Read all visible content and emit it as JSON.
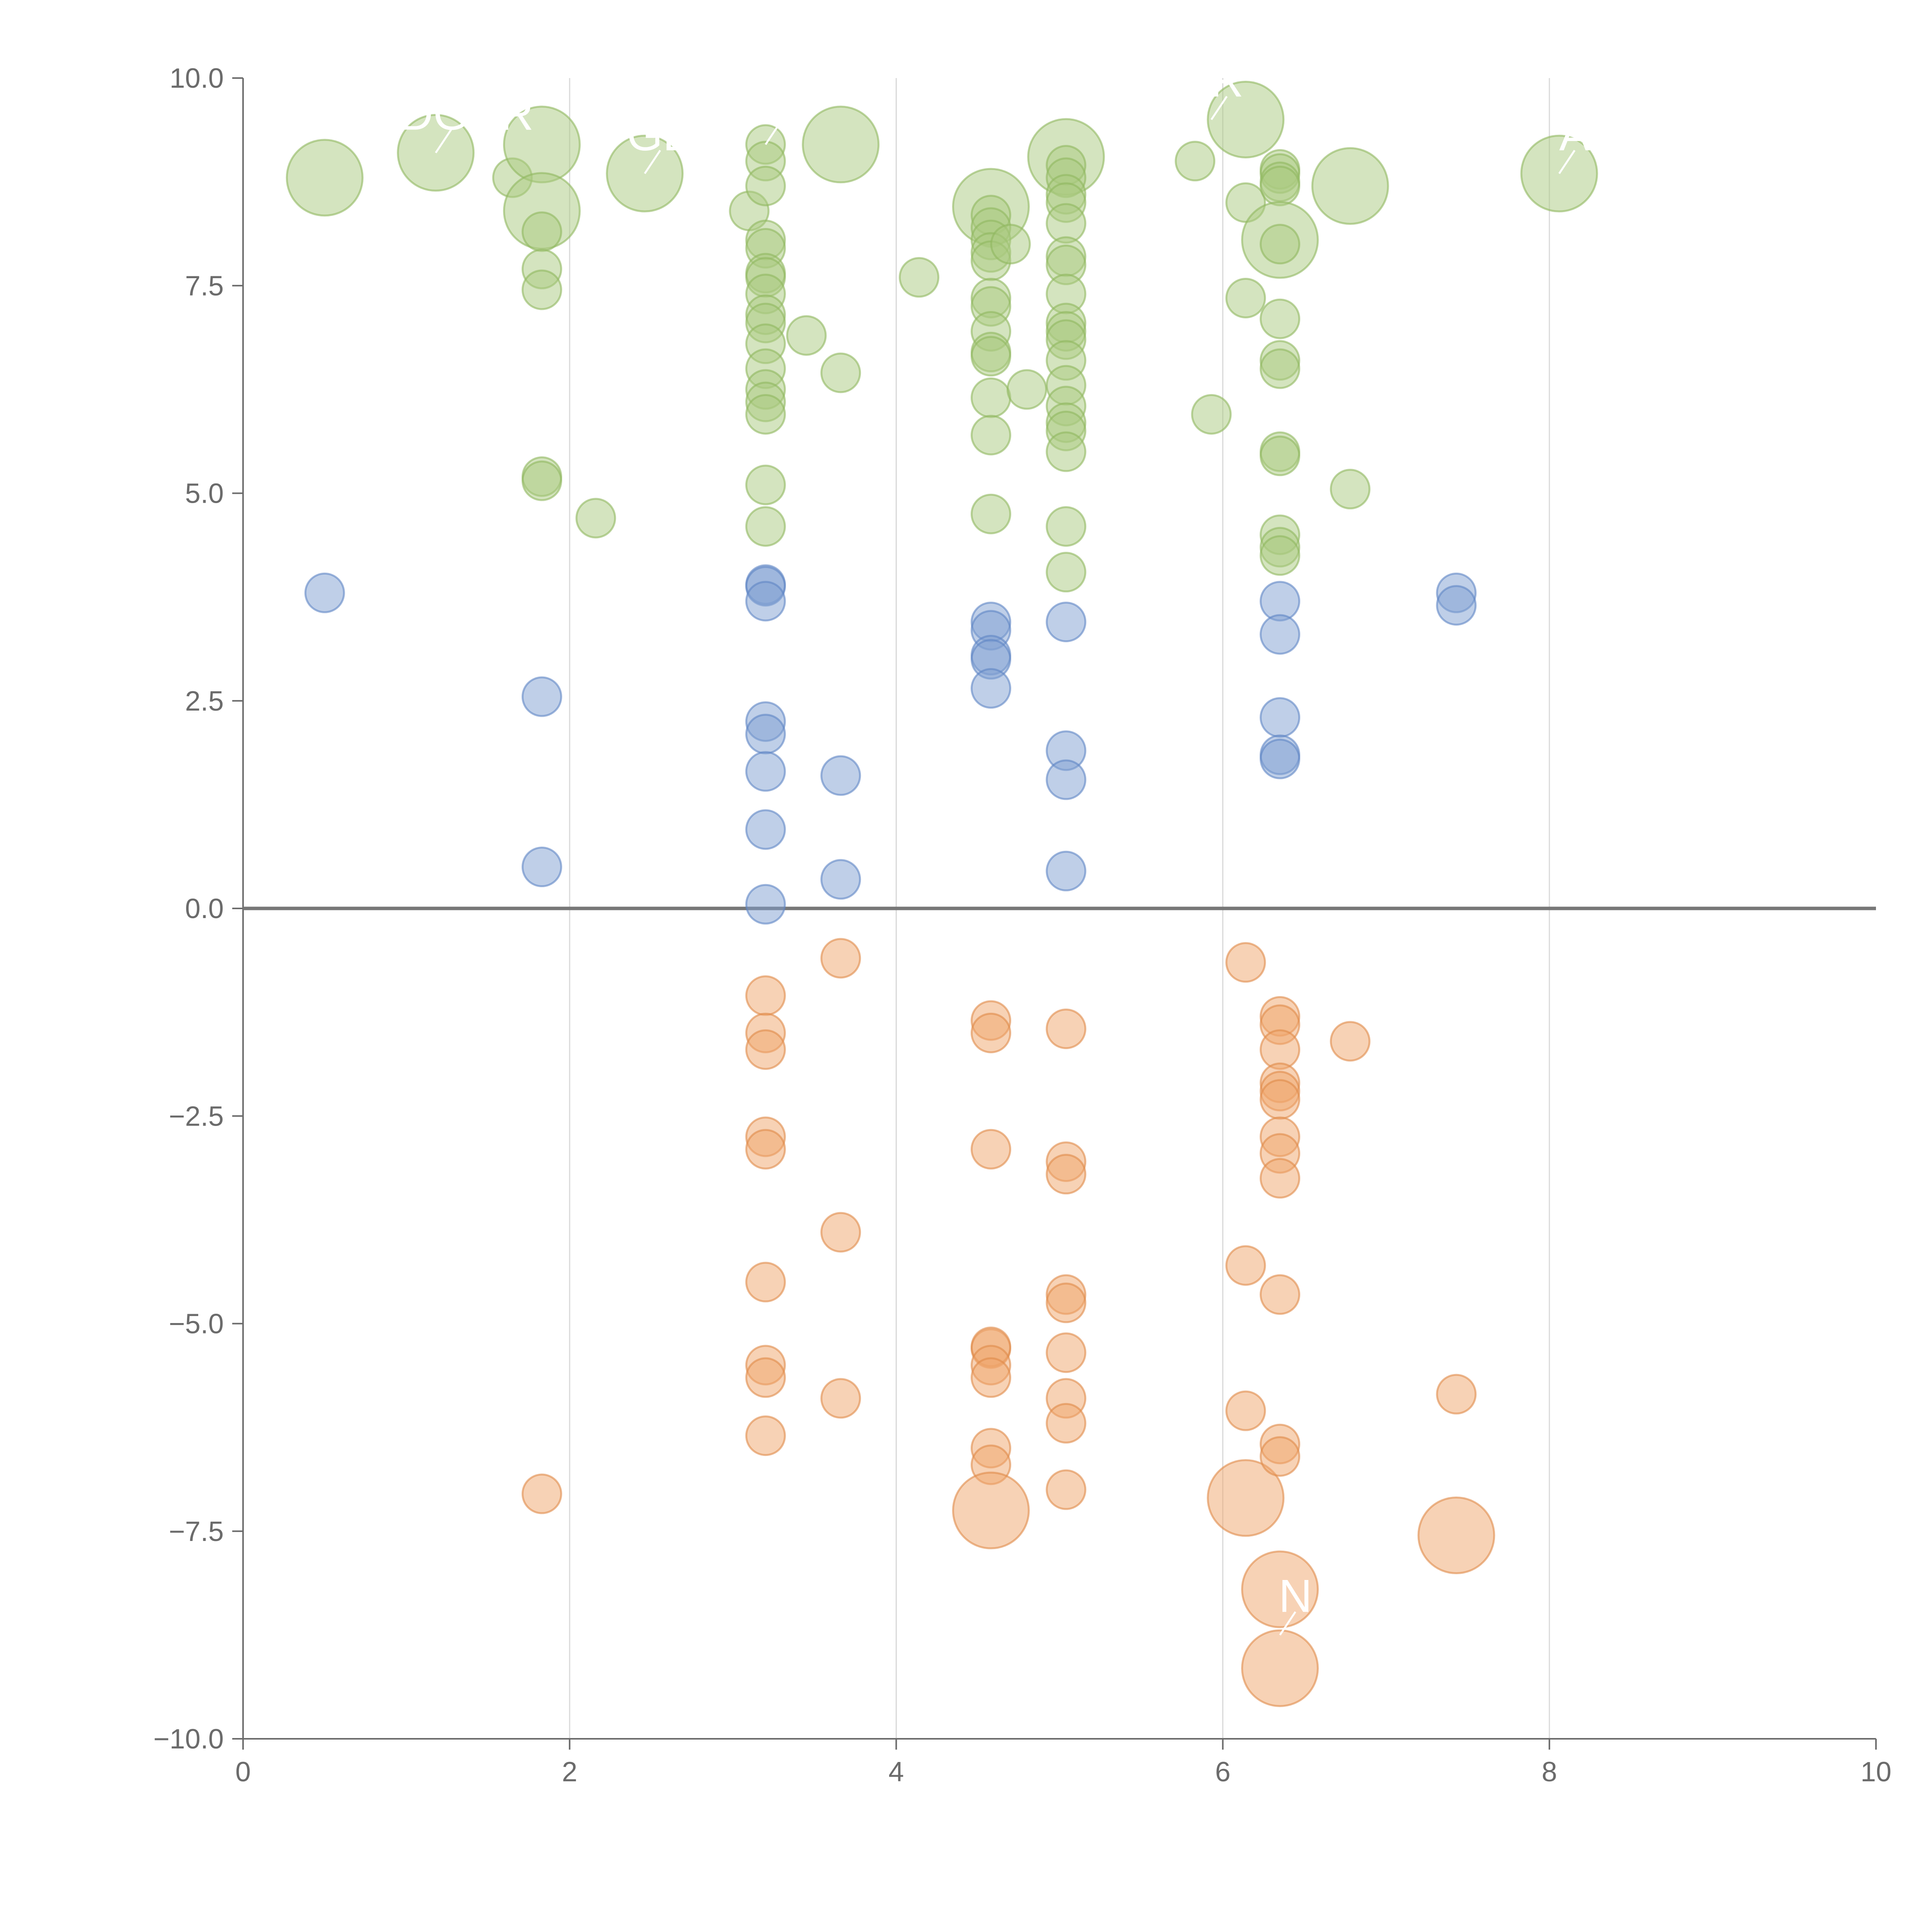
{
  "chart_data": {
    "type": "scatter",
    "variant": "bubble",
    "title": "",
    "xlabel": "",
    "ylabel": "",
    "xlim": [
      0,
      10
    ],
    "ylim": [
      -10,
      10
    ],
    "x_ticks": [
      "0",
      "2",
      "4",
      "6",
      "8",
      "10"
    ],
    "y_ticks": [
      "10.0",
      "7.5",
      "5.0",
      "2.5",
      "0.0",
      "−2.5",
      "−5.0",
      "−7.5",
      "−10.0"
    ],
    "grid": "vertical",
    "zero_line": true,
    "legend": "none",
    "colors": {
      "high": {
        "fill": "#a9c97f",
        "stroke": "#8fb85f"
      },
      "mid": {
        "fill": "#7f9fd1",
        "stroke": "#5f86c4"
      },
      "low": {
        "fill": "#f0a56b",
        "stroke": "#e08a4a"
      },
      "axis": "#6b6b6b",
      "grid": "#d9d9d9"
    },
    "series": [
      {
        "key": "high",
        "points": [
          [
            0.5,
            8.8,
            3
          ],
          [
            1.18,
            9.1,
            3
          ],
          [
            1.65,
            8.8,
            1
          ],
          [
            1.83,
            9.2,
            3
          ],
          [
            1.83,
            8.4,
            3
          ],
          [
            1.83,
            8.15,
            1
          ],
          [
            1.83,
            7.7,
            1
          ],
          [
            1.83,
            7.45,
            1
          ],
          [
            1.83,
            5.2,
            1
          ],
          [
            1.83,
            5.15,
            1
          ],
          [
            2.16,
            4.7,
            1
          ],
          [
            2.46,
            8.85,
            3
          ],
          [
            3.1,
            8.4,
            1
          ],
          [
            3.2,
            9.2,
            1
          ],
          [
            3.2,
            9.0,
            1
          ],
          [
            3.2,
            8.7,
            1
          ],
          [
            3.2,
            8.05,
            1
          ],
          [
            3.2,
            7.95,
            1
          ],
          [
            3.2,
            7.65,
            1
          ],
          [
            3.2,
            7.6,
            1
          ],
          [
            3.2,
            7.4,
            1
          ],
          [
            3.2,
            7.15,
            1
          ],
          [
            3.2,
            7.05,
            1
          ],
          [
            3.2,
            6.8,
            1
          ],
          [
            3.2,
            6.5,
            1
          ],
          [
            3.2,
            6.25,
            1
          ],
          [
            3.2,
            6.1,
            1
          ],
          [
            3.2,
            5.95,
            1
          ],
          [
            3.2,
            5.1,
            1
          ],
          [
            3.2,
            4.6,
            1
          ],
          [
            3.45,
            6.9,
            1
          ],
          [
            3.66,
            9.2,
            3
          ],
          [
            3.66,
            6.45,
            1
          ],
          [
            4.14,
            7.6,
            1
          ],
          [
            4.58,
            8.45,
            3
          ],
          [
            4.58,
            8.35,
            1
          ],
          [
            4.58,
            8.2,
            1
          ],
          [
            4.58,
            8.05,
            1
          ],
          [
            4.58,
            7.9,
            1
          ],
          [
            4.58,
            7.8,
            1
          ],
          [
            4.58,
            7.35,
            1
          ],
          [
            4.58,
            7.25,
            1
          ],
          [
            4.58,
            6.95,
            1
          ],
          [
            4.58,
            6.7,
            1
          ],
          [
            4.58,
            6.65,
            1
          ],
          [
            4.58,
            6.15,
            1
          ],
          [
            4.58,
            5.7,
            1
          ],
          [
            4.58,
            4.75,
            1
          ],
          [
            4.7,
            8.0,
            1
          ],
          [
            4.8,
            6.25,
            1
          ],
          [
            5.04,
            9.05,
            3
          ],
          [
            5.04,
            8.95,
            1
          ],
          [
            5.04,
            8.8,
            1
          ],
          [
            5.04,
            8.6,
            1
          ],
          [
            5.04,
            8.5,
            1
          ],
          [
            5.04,
            8.25,
            1
          ],
          [
            5.04,
            7.85,
            1
          ],
          [
            5.04,
            7.75,
            1
          ],
          [
            5.04,
            7.4,
            1
          ],
          [
            5.04,
            7.05,
            1
          ],
          [
            5.04,
            6.95,
            1
          ],
          [
            5.04,
            6.85,
            1
          ],
          [
            5.04,
            6.6,
            1
          ],
          [
            5.04,
            6.3,
            1
          ],
          [
            5.04,
            6.05,
            1
          ],
          [
            5.04,
            5.85,
            1
          ],
          [
            5.04,
            5.75,
            1
          ],
          [
            5.04,
            5.5,
            1
          ],
          [
            5.04,
            4.6,
            1
          ],
          [
            5.04,
            4.05,
            1
          ],
          [
            5.83,
            9.0,
            1
          ],
          [
            5.93,
            5.95,
            1
          ],
          [
            6.14,
            9.5,
            3
          ],
          [
            6.14,
            8.5,
            1
          ],
          [
            6.14,
            7.35,
            1
          ],
          [
            6.35,
            8.9,
            1
          ],
          [
            6.35,
            8.85,
            1
          ],
          [
            6.35,
            8.75,
            1
          ],
          [
            6.35,
            8.7,
            1
          ],
          [
            6.35,
            8.05,
            3
          ],
          [
            6.35,
            8.0,
            1
          ],
          [
            6.35,
            7.1,
            1
          ],
          [
            6.35,
            6.6,
            1
          ],
          [
            6.35,
            6.5,
            1
          ],
          [
            6.35,
            5.5,
            1
          ],
          [
            6.35,
            5.45,
            1
          ],
          [
            6.35,
            4.5,
            1
          ],
          [
            6.35,
            4.35,
            1
          ],
          [
            6.35,
            4.25,
            1
          ],
          [
            6.78,
            8.7,
            3
          ],
          [
            6.78,
            5.05,
            1
          ],
          [
            8.06,
            8.85,
            3
          ]
        ]
      },
      {
        "key": "mid",
        "points": [
          [
            0.5,
            3.8,
            1
          ],
          [
            1.83,
            2.55,
            1
          ],
          [
            1.83,
            0.5,
            1
          ],
          [
            3.2,
            3.9,
            1
          ],
          [
            3.2,
            3.88,
            1
          ],
          [
            3.2,
            3.7,
            1
          ],
          [
            3.2,
            2.25,
            1
          ],
          [
            3.2,
            2.1,
            1
          ],
          [
            3.2,
            1.65,
            1
          ],
          [
            3.2,
            0.95,
            1
          ],
          [
            3.2,
            0.05,
            1
          ],
          [
            3.66,
            1.6,
            1
          ],
          [
            3.66,
            0.35,
            1
          ],
          [
            4.58,
            3.45,
            1
          ],
          [
            4.58,
            3.35,
            1
          ],
          [
            4.58,
            3.05,
            1
          ],
          [
            4.58,
            3.0,
            1
          ],
          [
            4.58,
            2.65,
            1
          ],
          [
            5.04,
            3.45,
            1
          ],
          [
            5.04,
            1.9,
            1
          ],
          [
            5.04,
            1.55,
            1
          ],
          [
            5.04,
            0.45,
            1
          ],
          [
            6.35,
            3.7,
            1
          ],
          [
            6.35,
            3.3,
            1
          ],
          [
            6.35,
            2.3,
            1
          ],
          [
            6.35,
            1.85,
            1
          ],
          [
            6.35,
            1.8,
            1
          ],
          [
            7.43,
            3.8,
            1
          ],
          [
            7.43,
            3.65,
            1
          ]
        ]
      },
      {
        "key": "low",
        "points": [
          [
            1.83,
            -7.05,
            1
          ],
          [
            3.2,
            -1.05,
            1
          ],
          [
            3.2,
            -1.5,
            1
          ],
          [
            3.2,
            -1.7,
            1
          ],
          [
            3.2,
            -2.75,
            1
          ],
          [
            3.2,
            -2.9,
            1
          ],
          [
            3.2,
            -4.5,
            1
          ],
          [
            3.2,
            -5.5,
            1
          ],
          [
            3.2,
            -5.65,
            1
          ],
          [
            3.2,
            -6.35,
            1
          ],
          [
            3.66,
            -0.6,
            1
          ],
          [
            3.66,
            -3.9,
            1
          ],
          [
            3.66,
            -5.9,
            1
          ],
          [
            4.58,
            -1.35,
            1
          ],
          [
            4.58,
            -1.5,
            1
          ],
          [
            4.58,
            -2.9,
            1
          ],
          [
            4.58,
            -5.3,
            1
          ],
          [
            4.58,
            -5.28,
            1
          ],
          [
            4.58,
            -5.5,
            1
          ],
          [
            4.58,
            -5.65,
            1
          ],
          [
            4.58,
            -6.5,
            1
          ],
          [
            4.58,
            -6.7,
            1
          ],
          [
            4.58,
            -7.25,
            3
          ],
          [
            5.04,
            -1.45,
            1
          ],
          [
            5.04,
            -3.05,
            1
          ],
          [
            5.04,
            -3.2,
            1
          ],
          [
            5.04,
            -4.65,
            1
          ],
          [
            5.04,
            -4.75,
            1
          ],
          [
            5.04,
            -5.35,
            1
          ],
          [
            5.04,
            -5.9,
            1
          ],
          [
            5.04,
            -6.2,
            1
          ],
          [
            5.04,
            -7.0,
            1
          ],
          [
            6.14,
            -0.65,
            1
          ],
          [
            6.14,
            -4.3,
            1
          ],
          [
            6.14,
            -6.05,
            1
          ],
          [
            6.14,
            -7.1,
            3
          ],
          [
            6.35,
            -1.3,
            1
          ],
          [
            6.35,
            -1.4,
            1
          ],
          [
            6.35,
            -1.7,
            1
          ],
          [
            6.35,
            -2.1,
            1
          ],
          [
            6.35,
            -2.2,
            1
          ],
          [
            6.35,
            -2.3,
            1
          ],
          [
            6.35,
            -2.75,
            1
          ],
          [
            6.35,
            -2.95,
            1
          ],
          [
            6.35,
            -3.25,
            1
          ],
          [
            6.35,
            -4.65,
            1
          ],
          [
            6.35,
            -6.45,
            1
          ],
          [
            6.35,
            -6.6,
            1
          ],
          [
            6.35,
            -8.2,
            3
          ],
          [
            6.35,
            -9.15,
            3
          ],
          [
            6.78,
            -1.6,
            1
          ],
          [
            7.43,
            -5.85,
            1
          ],
          [
            7.43,
            -7.55,
            3
          ]
        ]
      }
    ],
    "annotations": [
      {
        "text": "ADGER",
        "x": 1.18,
        "y": 9.1
      },
      {
        "text": "GE",
        "x": 2.46,
        "y": 8.85
      },
      {
        "text": "R",
        "x": 3.2,
        "y": 9.2
      },
      {
        "text": "R",
        "x": 5.93,
        "y": 9.5
      },
      {
        "text": "A",
        "x": 8.06,
        "y": 8.85
      },
      {
        "text": "N",
        "x": 6.35,
        "y": -8.75
      }
    ]
  }
}
